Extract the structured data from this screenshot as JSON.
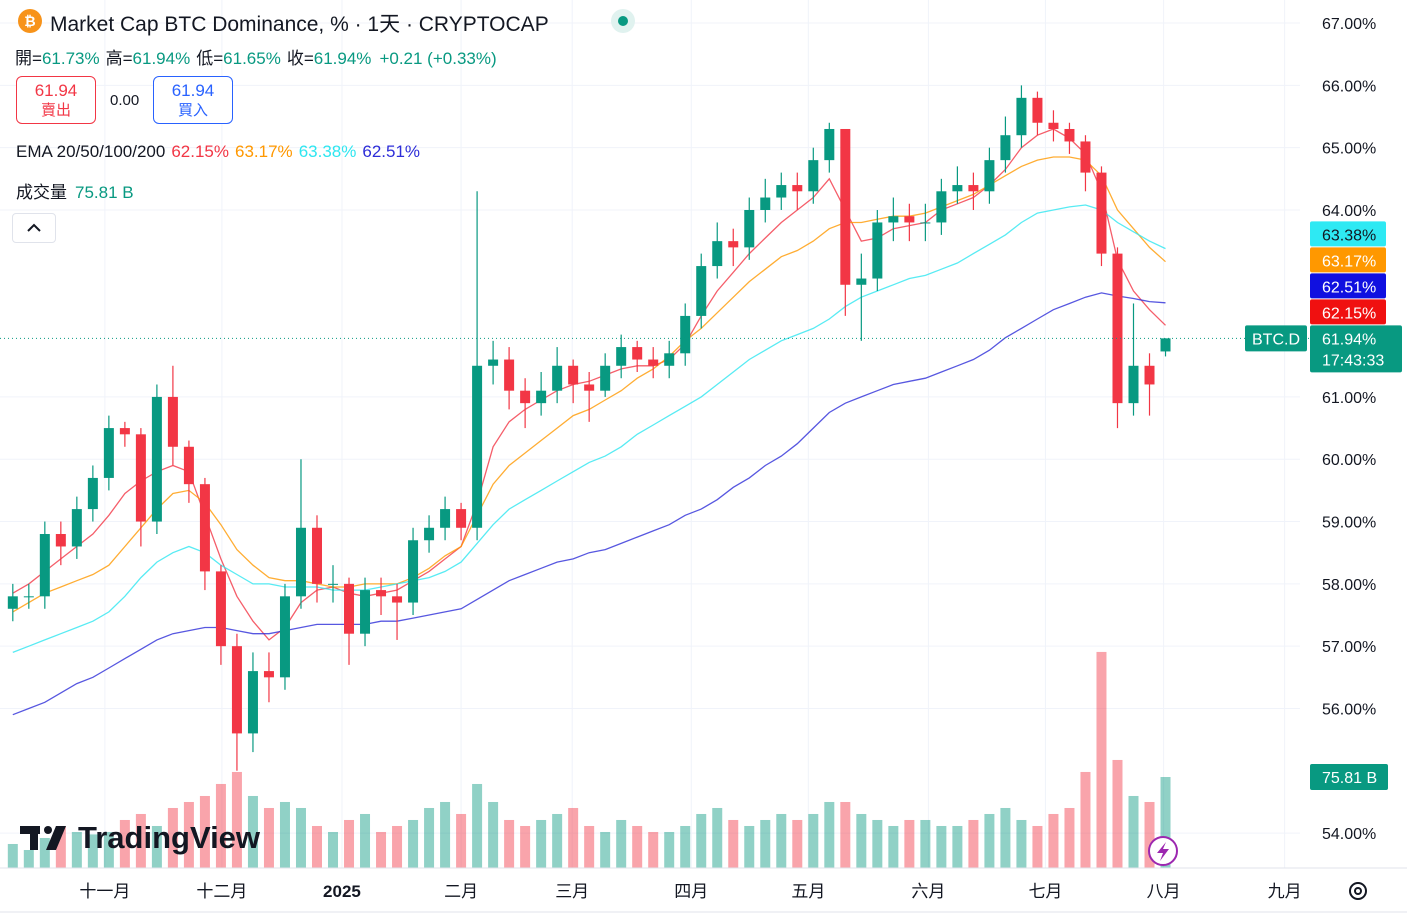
{
  "chart_data": {
    "type": "candlestick",
    "title": "Market Cap BTC Dominance, % · 1天 · CRYPTOCAP",
    "ohlc_legend": [
      {
        "label": "開=",
        "value": "61.73%"
      },
      {
        "label": "高=",
        "value": "61.94%"
      },
      {
        "label": "低=",
        "value": "61.65%"
      },
      {
        "label": "收=",
        "value": "61.94%"
      }
    ],
    "change": "+0.21 (+0.33%)",
    "trade": {
      "sell_price": "61.94",
      "sell_label": "賣出",
      "spread": "0.00",
      "buy_price": "61.94",
      "buy_label": "買入"
    },
    "ema_label": "EMA 20/50/100/200",
    "up_color": "#089981",
    "down_color": "#f23645",
    "open": [
      57.6,
      57.8,
      57.8,
      58.8,
      58.6,
      59.2,
      59.7,
      60.5,
      60.4,
      59.0,
      61.0,
      60.2,
      59.6,
      58.2,
      57.0,
      55.6,
      56.6,
      56.5,
      57.8,
      58.9,
      58.0,
      58.0,
      57.2,
      57.9,
      57.8,
      57.7,
      58.7,
      58.9,
      59.2,
      58.9,
      61.5,
      61.6,
      61.1,
      60.9,
      61.1,
      61.5,
      61.2,
      61.1,
      61.5,
      61.8,
      61.6,
      61.5,
      61.7,
      62.3,
      63.1,
      63.5,
      63.4,
      64.0,
      64.2,
      64.4,
      64.3,
      64.8,
      65.3,
      62.8,
      62.9,
      63.8,
      63.9,
      63.8,
      63.8,
      64.3,
      64.4,
      64.3,
      64.8,
      65.2,
      65.8,
      65.4,
      65.3,
      65.1,
      64.6,
      63.3,
      60.9,
      61.5,
      61.73
    ],
    "high": [
      58.0,
      58.0,
      59.0,
      59.0,
      59.4,
      59.9,
      60.7,
      60.6,
      60.5,
      61.2,
      61.5,
      60.3,
      59.7,
      58.3,
      57.2,
      56.9,
      56.9,
      58.0,
      60.0,
      59.1,
      58.3,
      58.1,
      58.1,
      58.1,
      58.0,
      58.9,
      59.1,
      59.4,
      59.3,
      64.3,
      61.9,
      61.8,
      61.3,
      61.4,
      61.8,
      61.6,
      61.4,
      61.7,
      62.0,
      61.9,
      61.8,
      61.9,
      62.5,
      63.3,
      63.8,
      63.7,
      64.2,
      64.5,
      64.6,
      64.6,
      65.0,
      65.4,
      65.3,
      63.3,
      64.0,
      64.2,
      64.1,
      64.1,
      64.5,
      64.7,
      64.6,
      65.0,
      65.5,
      66.0,
      65.9,
      65.6,
      65.4,
      65.2,
      64.7,
      63.4,
      62.5,
      61.7,
      61.94
    ],
    "low": [
      57.4,
      57.6,
      57.6,
      58.3,
      58.4,
      59.0,
      59.5,
      60.2,
      58.6,
      58.8,
      59.9,
      59.3,
      57.9,
      56.7,
      55.0,
      55.3,
      56.1,
      56.3,
      57.6,
      57.7,
      57.7,
      56.7,
      57.0,
      57.5,
      57.1,
      57.5,
      58.5,
      58.7,
      58.7,
      58.7,
      61.2,
      60.8,
      60.5,
      60.7,
      60.9,
      60.9,
      60.6,
      61.0,
      61.3,
      61.4,
      61.3,
      61.3,
      61.5,
      62.1,
      62.9,
      63.1,
      63.2,
      63.8,
      64.0,
      64.0,
      64.1,
      64.6,
      62.3,
      61.9,
      62.7,
      63.5,
      63.5,
      63.5,
      63.6,
      64.1,
      64.0,
      64.1,
      64.6,
      65.0,
      65.2,
      65.1,
      64.9,
      64.3,
      63.1,
      60.5,
      60.7,
      60.7,
      61.65
    ],
    "close": [
      57.8,
      57.8,
      58.8,
      58.6,
      59.2,
      59.7,
      60.5,
      60.4,
      59.0,
      61.0,
      60.2,
      59.6,
      58.2,
      57.0,
      55.6,
      56.6,
      56.5,
      57.8,
      58.9,
      58.0,
      58.0,
      57.2,
      57.9,
      57.8,
      57.7,
      58.7,
      58.9,
      59.2,
      58.9,
      61.5,
      61.6,
      61.1,
      60.9,
      61.1,
      61.5,
      61.2,
      61.1,
      61.5,
      61.8,
      61.6,
      61.5,
      61.7,
      62.3,
      63.1,
      63.5,
      63.4,
      64.0,
      64.2,
      64.4,
      64.3,
      64.8,
      65.3,
      62.8,
      62.9,
      63.8,
      63.9,
      63.8,
      63.8,
      64.3,
      64.4,
      64.3,
      64.8,
      65.2,
      65.8,
      65.4,
      65.3,
      65.1,
      64.6,
      63.3,
      60.9,
      61.5,
      61.2,
      61.94
    ],
    "series": [
      {
        "color": "#f23645",
        "badge_text": "#ffffff",
        "badge_color": "#f01010",
        "last_label": "62.15%",
        "values": [
          57.85,
          58.0,
          58.2,
          58.4,
          58.6,
          58.8,
          59.1,
          59.45,
          59.65,
          59.8,
          59.9,
          59.8,
          59.1,
          58.4,
          57.8,
          57.4,
          57.1,
          57.3,
          57.7,
          57.9,
          57.95,
          57.85,
          57.8,
          57.85,
          57.9,
          58.05,
          58.2,
          58.4,
          58.6,
          59.3,
          60.2,
          60.6,
          60.8,
          60.95,
          61.1,
          61.2,
          61.25,
          61.35,
          61.45,
          61.5,
          61.5,
          61.6,
          61.85,
          62.3,
          62.7,
          63.0,
          63.3,
          63.55,
          63.8,
          64.0,
          64.2,
          64.5,
          64.0,
          63.5,
          63.55,
          63.7,
          63.75,
          63.8,
          64.0,
          64.1,
          64.2,
          64.4,
          64.65,
          65.0,
          65.2,
          65.3,
          65.15,
          64.9,
          64.3,
          63.2,
          62.7,
          62.4,
          62.15
        ]
      },
      {
        "color": "#ff9800",
        "badge_text": "#ffffff",
        "badge_color": "#ff9800",
        "last_label": "63.17%",
        "values": [
          57.55,
          57.7,
          57.85,
          57.95,
          58.05,
          58.15,
          58.3,
          58.6,
          58.9,
          59.2,
          59.45,
          59.5,
          59.3,
          58.95,
          58.55,
          58.3,
          58.1,
          58.05,
          58.05,
          58.0,
          57.95,
          57.95,
          58.0,
          58.0,
          58.0,
          58.1,
          58.25,
          58.45,
          58.6,
          59.1,
          59.6,
          59.9,
          60.1,
          60.3,
          60.5,
          60.7,
          60.8,
          60.95,
          61.1,
          61.3,
          61.45,
          61.65,
          61.9,
          62.1,
          62.35,
          62.6,
          62.85,
          63.05,
          63.25,
          63.35,
          63.5,
          63.7,
          63.8,
          63.8,
          63.85,
          63.9,
          63.9,
          63.95,
          64.05,
          64.15,
          64.25,
          64.4,
          64.55,
          64.7,
          64.8,
          64.85,
          64.85,
          64.8,
          64.55,
          64.0,
          63.7,
          63.4,
          63.17
        ]
      },
      {
        "color": "#2ee6f0",
        "badge_text": "#131722",
        "badge_color": "#2ee9f3",
        "last_label": "63.38%",
        "values": [
          56.9,
          57.0,
          57.1,
          57.2,
          57.3,
          57.4,
          57.55,
          57.8,
          58.1,
          58.35,
          58.5,
          58.6,
          58.5,
          58.3,
          58.15,
          58.0,
          58.0,
          57.95,
          57.95,
          57.95,
          57.9,
          57.9,
          57.9,
          57.95,
          58.0,
          58.05,
          58.1,
          58.2,
          58.35,
          58.65,
          58.95,
          59.2,
          59.35,
          59.5,
          59.65,
          59.8,
          59.95,
          60.05,
          60.2,
          60.4,
          60.55,
          60.7,
          60.85,
          61.0,
          61.2,
          61.4,
          61.6,
          61.75,
          61.9,
          62.0,
          62.1,
          62.25,
          62.45,
          62.6,
          62.7,
          62.8,
          62.9,
          62.95,
          63.05,
          63.15,
          63.3,
          63.45,
          63.6,
          63.8,
          63.95,
          64.0,
          64.05,
          64.08,
          64.0,
          63.8,
          63.65,
          63.5,
          63.38
        ]
      },
      {
        "color": "#2d2dd8",
        "badge_text": "#ffffff",
        "badge_color": "#1010e0",
        "last_label": "62.51%",
        "values": [
          55.9,
          56.0,
          56.1,
          56.25,
          56.4,
          56.5,
          56.65,
          56.8,
          56.95,
          57.1,
          57.2,
          57.25,
          57.3,
          57.3,
          57.25,
          57.2,
          57.2,
          57.25,
          57.3,
          57.35,
          57.35,
          57.35,
          57.35,
          57.4,
          57.4,
          57.45,
          57.5,
          57.55,
          57.6,
          57.75,
          57.9,
          58.05,
          58.15,
          58.25,
          58.35,
          58.4,
          58.5,
          58.55,
          58.65,
          58.75,
          58.85,
          58.95,
          59.1,
          59.2,
          59.35,
          59.55,
          59.7,
          59.9,
          60.05,
          60.25,
          60.5,
          60.75,
          60.9,
          61.0,
          61.1,
          61.2,
          61.25,
          61.3,
          61.4,
          61.5,
          61.6,
          61.75,
          61.95,
          62.1,
          62.25,
          62.4,
          62.5,
          62.6,
          62.67,
          62.62,
          62.58,
          62.53,
          62.51
        ]
      }
    ],
    "volume": {
      "label": "成交量",
      "last_label": "75.81 B",
      "values": [
        20,
        15,
        25,
        35,
        30,
        28,
        30,
        40,
        45,
        35,
        50,
        55,
        60,
        70,
        80,
        60,
        50,
        55,
        50,
        35,
        30,
        40,
        45,
        30,
        35,
        40,
        50,
        55,
        45,
        70,
        55,
        40,
        35,
        40,
        45,
        50,
        35,
        30,
        40,
        35,
        30,
        30,
        35,
        45,
        50,
        40,
        35,
        40,
        45,
        40,
        45,
        55,
        55,
        45,
        40,
        35,
        40,
        40,
        35,
        35,
        40,
        45,
        50,
        40,
        35,
        45,
        50,
        80,
        180,
        90,
        60,
        55,
        75.81
      ]
    },
    "price_label": {
      "symbol": "BTC.D",
      "value": "61.94%",
      "countdown": "17:43:33"
    },
    "ylim": [
      53.44,
      67.37
    ],
    "yticks": [
      {
        "value": 54,
        "label": "54.00%"
      },
      {
        "value": 56,
        "label": "56.00%"
      },
      {
        "value": 57,
        "label": "57.00%"
      },
      {
        "value": 58,
        "label": "58.00%"
      },
      {
        "value": 59,
        "label": "59.00%"
      },
      {
        "value": 60,
        "label": "60.00%"
      },
      {
        "value": 61,
        "label": "61.00%"
      },
      {
        "value": 64,
        "label": "64.00%"
      },
      {
        "value": 65,
        "label": "65.00%"
      },
      {
        "value": 66,
        "label": "66.00%"
      },
      {
        "value": 67,
        "label": "67.00%"
      }
    ],
    "xlim": [
      -0.8,
      80.4
    ],
    "xticks": [
      {
        "value": 5.75,
        "label": "十一月"
      },
      {
        "value": 13.06,
        "label": "十二月"
      },
      {
        "value": 20.56,
        "label": "2025"
      },
      {
        "value": 28,
        "label": "二月"
      },
      {
        "value": 34.94,
        "label": "三月"
      },
      {
        "value": 42.38,
        "label": "四月"
      },
      {
        "value": 49.69,
        "label": "五月"
      },
      {
        "value": 57.19,
        "label": "六月"
      },
      {
        "value": 64.5,
        "label": "七月"
      },
      {
        "value": 71.88,
        "label": "八月"
      },
      {
        "value": 79.44,
        "label": "九月"
      }
    ],
    "grid": true,
    "watermark": "TradingView"
  }
}
